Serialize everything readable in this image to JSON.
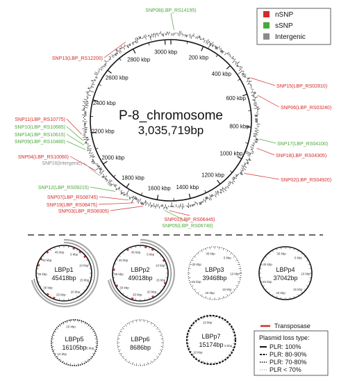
{
  "chromosome": {
    "name": "P-8_chromosome",
    "size": "3,035,719bp",
    "ticks": [
      {
        "label": "3000 kbp",
        "kbp": 3000
      },
      {
        "label": "200 kbp",
        "kbp": 200
      },
      {
        "label": "400 kbp",
        "kbp": 400
      },
      {
        "label": "600 kbp",
        "kbp": 600
      },
      {
        "label": "800 kbp",
        "kbp": 800
      },
      {
        "label": "1000 kbp",
        "kbp": 1000
      },
      {
        "label": "1200 kbp",
        "kbp": 1200
      },
      {
        "label": "1400 kbp",
        "kbp": 1400
      },
      {
        "label": "1600 kbp",
        "kbp": 1600
      },
      {
        "label": "1800 kbp",
        "kbp": 1800
      },
      {
        "label": "2000 kbp",
        "kbp": 2000
      },
      {
        "label": "2200 kbp",
        "kbp": 2200
      },
      {
        "label": "2400 kbp",
        "kbp": 2400
      },
      {
        "label": "2600 kbp",
        "kbp": 2600
      },
      {
        "label": "2800 kbp",
        "kbp": 2800
      }
    ]
  },
  "snp_legend": [
    {
      "label": "nSNP",
      "color": "#d42a2a"
    },
    {
      "label": "sSNP",
      "color": "#4aa83a"
    },
    {
      "label": "Intergenic",
      "color": "#8a8a8a"
    }
  ],
  "snps": [
    {
      "label": "SNP08(LBP_RS14195)",
      "type": "sSNP",
      "color": "#4aa83a"
    },
    {
      "label": "SNP13(LBP_RS12200)",
      "type": "nSNP",
      "color": "#d42a2a"
    },
    {
      "label": "SNP15(LBP_RS02810)",
      "type": "nSNP",
      "color": "#d42a2a"
    },
    {
      "label": "SNP06(LBP_RS03240)",
      "type": "nSNP",
      "color": "#d42a2a"
    },
    {
      "label": "SNP11(LBP_RS10775)",
      "type": "nSNP",
      "color": "#d42a2a"
    },
    {
      "label": "SNP10(LBP_RS10685)",
      "type": "sSNP",
      "color": "#4aa83a"
    },
    {
      "label": "SNP14(LBP_RS10615)",
      "type": "sSNP",
      "color": "#4aa83a"
    },
    {
      "label": "SNP09(LBP_RS10480)",
      "type": "sSNP",
      "color": "#4aa83a"
    },
    {
      "label": "SNP17(LBP_RS04100)",
      "type": "sSNP",
      "color": "#4aa83a"
    },
    {
      "label": "SNP18(LBP_RS04305)",
      "type": "nSNP",
      "color": "#d42a2a"
    },
    {
      "label": "SNP04(LBP_RS10060)",
      "type": "nSNP",
      "color": "#d42a2a"
    },
    {
      "label": "SNP16(Intergenic)",
      "type": "Intergenic",
      "color": "#8a8a8a"
    },
    {
      "label": "SNP02(LBP_RS04920)",
      "type": "nSNP",
      "color": "#d42a2a"
    },
    {
      "label": "SNP12(LBP_RS09215)",
      "type": "sSNP",
      "color": "#4aa83a"
    },
    {
      "label": "SNP07(LBP_RS08745)",
      "type": "nSNP",
      "color": "#d42a2a"
    },
    {
      "label": "SNP19(LBP_RS08475)",
      "type": "nSNP",
      "color": "#d42a2a"
    },
    {
      "label": "SNP03(LBP_RS08305)",
      "type": "nSNP",
      "color": "#d42a2a"
    },
    {
      "label": "SNP01(LBP_RS06445)",
      "type": "nSNP",
      "color": "#d42a2a"
    },
    {
      "label": "SNP05(LBP_RS06740)",
      "type": "sSNP",
      "color": "#4aa83a"
    }
  ],
  "plasmids": [
    {
      "name": "LBPp1",
      "size": "45418bp",
      "style": "PLR: 100%",
      "ticks": [
        "45 kbp",
        "5 kbp",
        "10 kbp",
        "15 kbp",
        "20 kbp",
        "25 kbp",
        "30 kbp",
        "35 kbp",
        "40 kbp"
      ]
    },
    {
      "name": "LBPp2",
      "size": "49018bp",
      "style": "PLR: 100%",
      "ticks": [
        "45 kbp",
        "5 kbp",
        "10 kbp",
        "15 kbp",
        "20 kbp",
        "25 kbp",
        "30 kbp",
        "35 kbp",
        "40 kbp"
      ]
    },
    {
      "name": "LBPp3",
      "size": "39468bp",
      "style": "PLR < 70%",
      "ticks": [
        "35 kbp",
        "5 kbp",
        "10 kbp",
        "15 kbp",
        "20 kbp",
        "25 kbp",
        "30 kbp"
      ]
    },
    {
      "name": "LBPp4",
      "size": "37042bp",
      "style": "PLR: 100%",
      "ticks": [
        "35 kbp",
        "5 kbp",
        "10 kbp",
        "15 kbp",
        "20 kbp",
        "25 kbp",
        "30 kbp"
      ]
    },
    {
      "name": "LBPp5",
      "size": "16105bp",
      "style": "PLR: 70-80%",
      "ticks": [
        "15 kbp",
        "5 kbp",
        "10 kbp"
      ]
    },
    {
      "name": "LBPp6",
      "size": "8686bp",
      "style": "PLR < 70%",
      "ticks": []
    },
    {
      "name": "LBPp7",
      "size": "15174bp",
      "style": "PLR: 80-90%",
      "ticks": [
        "15 kbp",
        "5 kbp",
        "10 kbp"
      ]
    }
  ],
  "plasmid_legend": {
    "transposase_label": "Transposase",
    "transposase_color": "#d42a2a",
    "title": "Plasmid loss type:",
    "items": [
      {
        "label": "PLR: 100%",
        "style": "solid"
      },
      {
        "label": "PLR: 80-90%",
        "style": "dashed"
      },
      {
        "label": "PLR: 70-80%",
        "style": "dotted"
      },
      {
        "label": "PLR < 70%",
        "style": "fine"
      }
    ]
  }
}
